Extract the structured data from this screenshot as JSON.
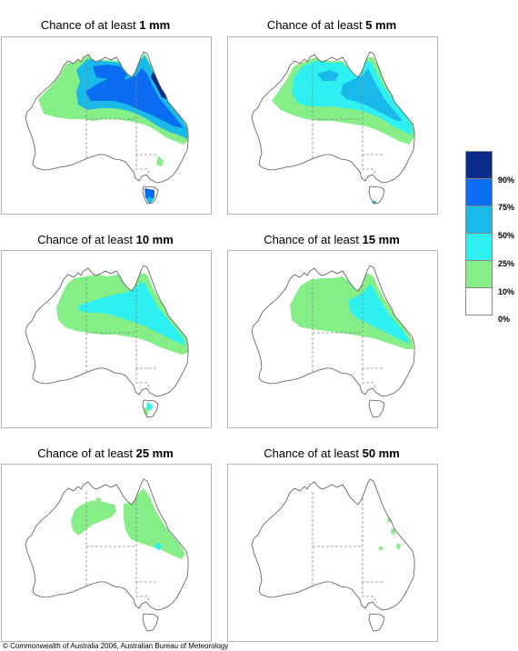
{
  "panels": [
    {
      "prefix": "Chance of at least ",
      "amount": "1 mm",
      "level": "1mm"
    },
    {
      "prefix": "Chance of at least ",
      "amount": "5 mm",
      "level": "5mm"
    },
    {
      "prefix": "Chance of at least ",
      "amount": "10 mm",
      "level": "10mm"
    },
    {
      "prefix": "Chance of at least ",
      "amount": "15 mm",
      "level": "15mm"
    },
    {
      "prefix": "Chance of at least ",
      "amount": "25 mm",
      "level": "25mm"
    },
    {
      "prefix": "Chance of at least ",
      "amount": "50 mm",
      "level": "50mm"
    }
  ],
  "legend": {
    "colors": [
      "#0a2a8c",
      "#0a6cf0",
      "#19b9ea",
      "#2ef0f0",
      "#86ee86",
      "#ffffff"
    ],
    "labels": [
      "90%",
      "75%",
      "50%",
      "25%",
      "10%",
      "0%"
    ]
  },
  "copyright": "© Commonwealth of Australia 2006, Australian Bureau of Meteorology"
}
